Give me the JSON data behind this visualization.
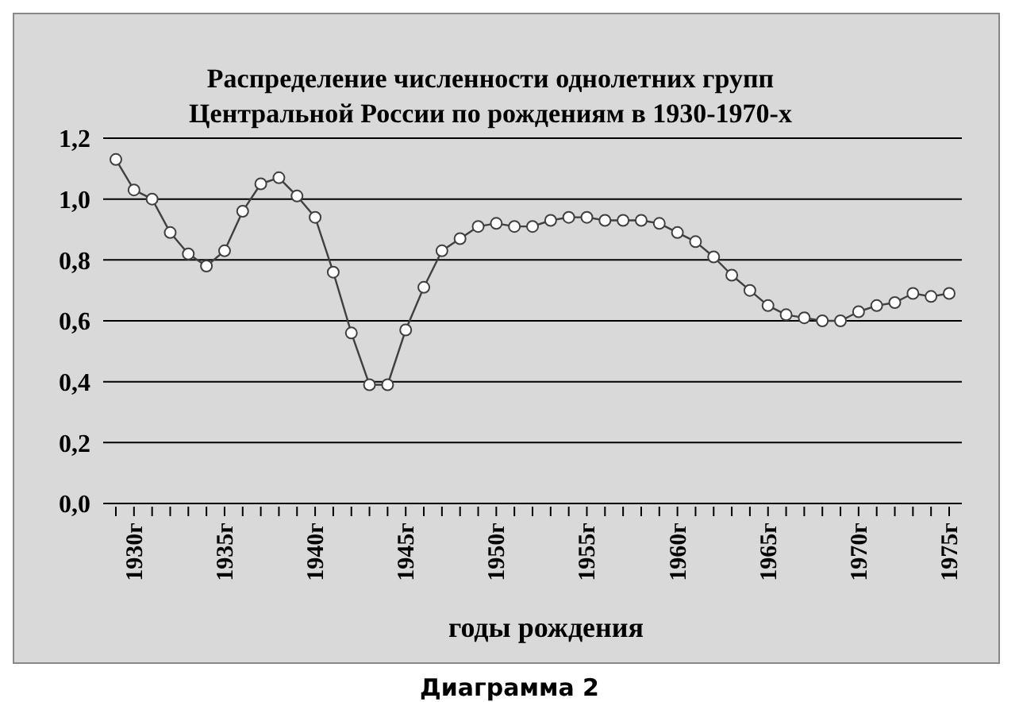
{
  "chart_data": {
    "type": "line",
    "title": "Распределение численности однолетних групп Центральной России по рождениям в 1930-1970-х",
    "xlabel": "годы рождения",
    "annotations": [
      "Диаграмма 2"
    ],
    "categories": [
      null,
      "1930г",
      null,
      null,
      null,
      null,
      "1935г",
      null,
      null,
      null,
      null,
      "1940г",
      null,
      null,
      null,
      null,
      "1945г",
      null,
      null,
      null,
      null,
      "1950г",
      null,
      null,
      null,
      null,
      "1955г",
      null,
      null,
      null,
      null,
      "1960г",
      null,
      null,
      null,
      null,
      "1965г",
      null,
      null,
      null,
      null,
      "1970г",
      null,
      null,
      null,
      null,
      "1975г"
    ],
    "series": [
      {
        "color": "#404040",
        "values": [
          1.13,
          1.03,
          1.0,
          0.89,
          0.82,
          0.78,
          0.83,
          0.96,
          1.05,
          1.07,
          1.01,
          0.94,
          0.76,
          0.56,
          0.39,
          0.39,
          0.57,
          0.71,
          0.83,
          0.87,
          0.91,
          0.92,
          0.91,
          0.91,
          0.93,
          0.94,
          0.94,
          0.93,
          0.93,
          0.93,
          0.92,
          0.89,
          0.86,
          0.81,
          0.75,
          0.7,
          0.65,
          0.62,
          0.61,
          0.6,
          0.6,
          0.63,
          0.65,
          0.66,
          0.69,
          0.68,
          0.69
        ]
      }
    ],
    "ylim": [
      0,
      1.2
    ],
    "yticks": [
      {
        "value": 0,
        "label": "0,0"
      },
      {
        "value": 0.2,
        "label": "0,2"
      },
      {
        "value": 0.4,
        "label": "0,4"
      },
      {
        "value": 0.6,
        "label": "0,6"
      },
      {
        "value": 0.8,
        "label": "0,8"
      },
      {
        "value": 1,
        "label": "1,0"
      },
      {
        "value": 1.2,
        "label": "1,2"
      }
    ],
    "grid": "y",
    "marker": "circle",
    "line_style": "solid",
    "legend": false
  }
}
